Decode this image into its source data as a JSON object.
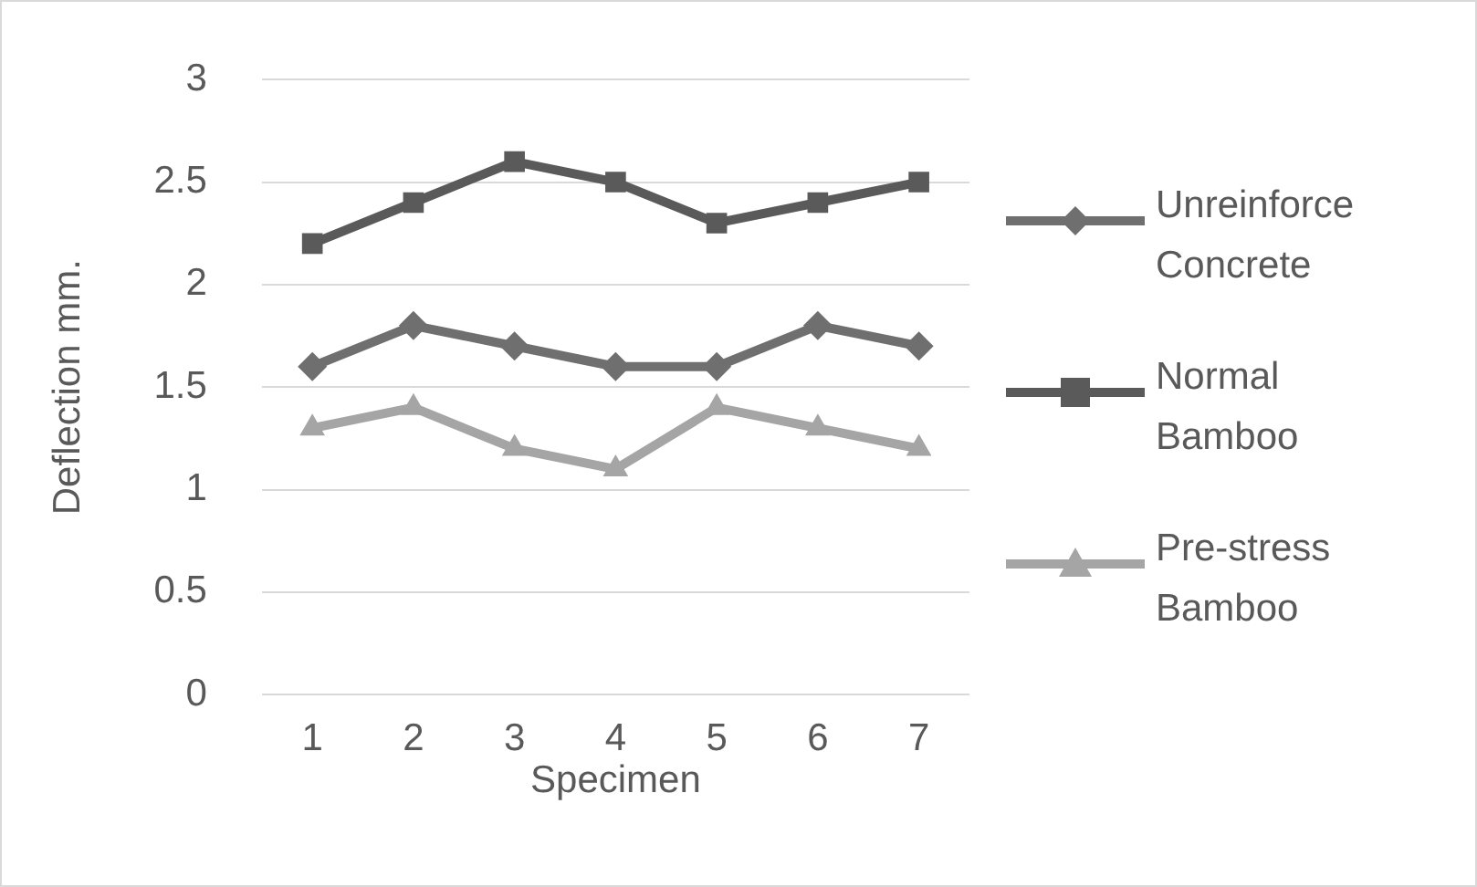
{
  "chart_data": {
    "type": "line",
    "xlabel": "Specimen",
    "ylabel": "Deflection mm.",
    "categories": [
      "1",
      "2",
      "3",
      "4",
      "5",
      "6",
      "7"
    ],
    "series": [
      {
        "name": "Unreinforce Concrete",
        "color": "#6f6f6f",
        "marker": "diamond",
        "values": [
          1.6,
          1.8,
          1.7,
          1.6,
          1.6,
          1.8,
          1.7
        ]
      },
      {
        "name": "Normal Bamboo",
        "color": "#5a5a5a",
        "marker": "square",
        "values": [
          2.2,
          2.4,
          2.6,
          2.5,
          2.3,
          2.4,
          2.5
        ]
      },
      {
        "name": "Pre-stress Bamboo",
        "color": "#a5a5a5",
        "marker": "triangle",
        "values": [
          1.3,
          1.4,
          1.2,
          1.1,
          1.4,
          1.3,
          1.2
        ]
      }
    ],
    "ylim": [
      0,
      3
    ],
    "yticks": [
      0,
      0.5,
      1,
      1.5,
      2,
      2.5,
      3
    ],
    "grid": "y",
    "legend": "right",
    "line_style": "solid"
  }
}
